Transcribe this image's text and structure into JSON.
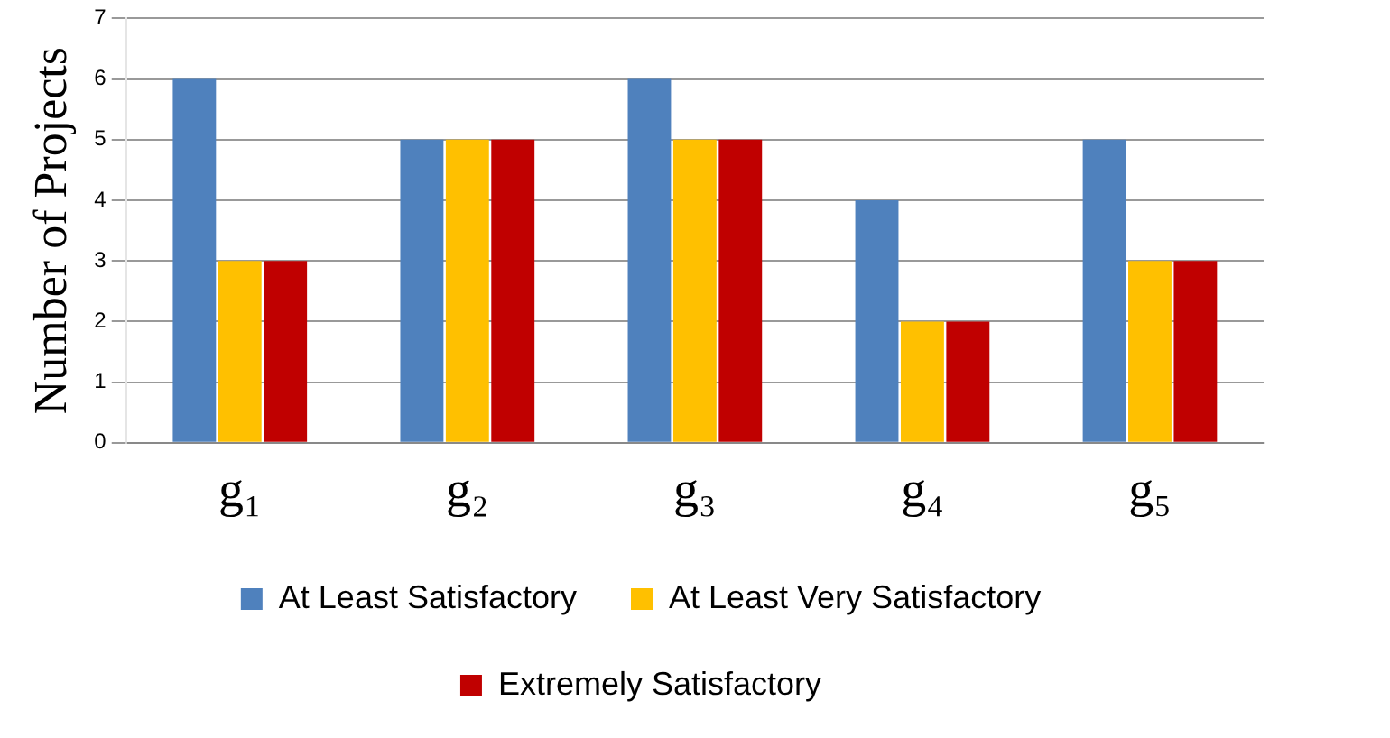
{
  "chart_data": {
    "type": "bar",
    "ylabel": "Number of Projects",
    "categories": [
      "g₁",
      "g₂",
      "g₃",
      "g₄",
      "g₅"
    ],
    "series": [
      {
        "name": "At Least Satisfactory",
        "color": "#4f81bd",
        "values": [
          6,
          5,
          6,
          4,
          5
        ]
      },
      {
        "name": "At Least Very Satisfactory",
        "color": "#ffc000",
        "values": [
          3,
          5,
          5,
          2,
          3
        ]
      },
      {
        "name": "Extremely Satisfactory",
        "color": "#c00000",
        "values": [
          3,
          5,
          5,
          2,
          3
        ]
      }
    ],
    "ylim": [
      0,
      7
    ],
    "yticks": [
      0,
      1,
      2,
      3,
      4,
      5,
      6,
      7
    ],
    "grid": "y",
    "legend": "bottom"
  }
}
